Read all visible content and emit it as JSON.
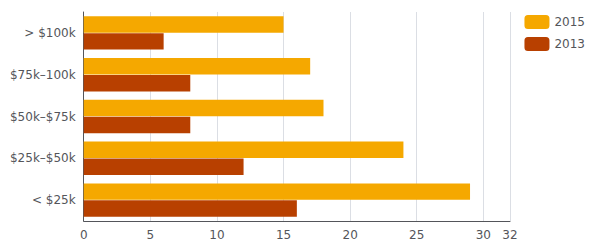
{
  "chart_data": {
    "type": "bar",
    "orientation": "horizontal",
    "categories": [
      "> $100k",
      "$75k–100k",
      "$50k–$75k",
      "$25k–$50k",
      "< $25k"
    ],
    "series": [
      {
        "name": "2015",
        "color": "#F5A800",
        "values": [
          15,
          17,
          18,
          24,
          29
        ]
      },
      {
        "name": "2013",
        "color": "#B84000",
        "values": [
          6,
          8,
          8,
          12,
          16
        ]
      }
    ],
    "xlim": [
      0,
      32
    ],
    "xticks": [
      0,
      5,
      10,
      15,
      20,
      25,
      30
    ],
    "grid": true,
    "legend": "right"
  }
}
